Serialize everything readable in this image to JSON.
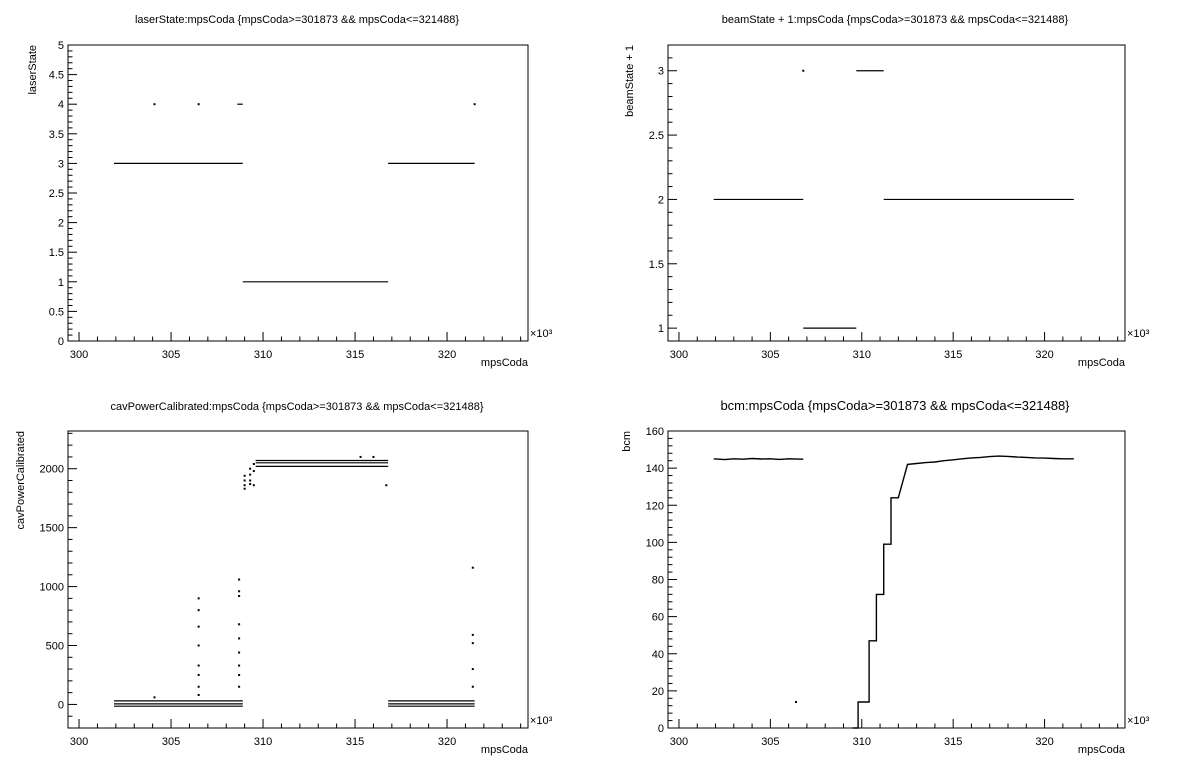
{
  "chart_data": [
    {
      "type": "scatter",
      "title": "laserState:mpsCoda {mpsCoda>=301873 && mpsCoda<=321488}",
      "xlabel": "mpsCoda",
      "ylabel": "laserState",
      "x_multiplier": "×10³",
      "xlim": [
        299.4,
        324.4
      ],
      "ylim": [
        0,
        5
      ],
      "xticks": [
        "300",
        "305",
        "310",
        "315",
        "320"
      ],
      "yticks": [
        "0",
        "0.5",
        "1",
        "1.5",
        "2",
        "2.5",
        "3",
        "3.5",
        "4",
        "4.5",
        "5"
      ],
      "segments": [
        {
          "x": [
            301.9,
            308.9
          ],
          "y": 3
        },
        {
          "x": [
            308.9,
            316.8
          ],
          "y": 1
        },
        {
          "x": [
            316.8,
            321.5
          ],
          "y": 3
        },
        {
          "x": [
            308.6,
            308.9
          ],
          "y": 4
        }
      ],
      "points": [
        {
          "x": 304.1,
          "y": 4
        },
        {
          "x": 306.5,
          "y": 4
        },
        {
          "x": 321.5,
          "y": 4
        }
      ]
    },
    {
      "type": "scatter",
      "title": "beamState + 1:mpsCoda {mpsCoda>=301873 && mpsCoda<=321488}",
      "xlabel": "mpsCoda",
      "ylabel": "beamState + 1",
      "x_multiplier": "×10³",
      "xlim": [
        299.4,
        324.4
      ],
      "ylim": [
        0.9,
        3.2
      ],
      "xticks": [
        "300",
        "305",
        "310",
        "315",
        "320"
      ],
      "yticks": [
        "1",
        "1.5",
        "2",
        "2.5",
        "3"
      ],
      "segments": [
        {
          "x": [
            301.9,
            306.8
          ],
          "y": 2
        },
        {
          "x": [
            306.8,
            309.7
          ],
          "y": 1
        },
        {
          "x": [
            309.7,
            311.2
          ],
          "y": 3
        },
        {
          "x": [
            311.2,
            321.6
          ],
          "y": 2
        }
      ],
      "points": [
        {
          "x": 306.8,
          "y": 3
        }
      ]
    },
    {
      "type": "scatter",
      "title": "cavPowerCalibrated:mpsCoda {mpsCoda>=301873 && mpsCoda<=321488}",
      "xlabel": "mpsCoda",
      "ylabel": "cavPowerCalibrated",
      "x_multiplier": "×10³",
      "xlim": [
        299.4,
        324.4
      ],
      "ylim": [
        -200,
        2320
      ],
      "xticks": [
        "300",
        "305",
        "310",
        "315",
        "320"
      ],
      "yticks": [
        "0",
        "500",
        "1000",
        "1500",
        "2000"
      ],
      "segments": [
        {
          "x": [
            301.9,
            308.9
          ],
          "y": 30
        },
        {
          "x": [
            301.9,
            308.9
          ],
          "y": 5
        },
        {
          "x": [
            301.9,
            308.9
          ],
          "y": -15
        },
        {
          "x": [
            309.6,
            316.8
          ],
          "y": 2070
        },
        {
          "x": [
            309.6,
            316.8
          ],
          "y": 2050
        },
        {
          "x": [
            309.6,
            316.8
          ],
          "y": 2020
        },
        {
          "x": [
            316.8,
            321.5
          ],
          "y": 30
        },
        {
          "x": [
            316.8,
            321.5
          ],
          "y": 5
        },
        {
          "x": [
            316.8,
            321.5
          ],
          "y": -15
        }
      ],
      "points": [
        {
          "x": 304.1,
          "y": 60
        },
        {
          "x": 306.5,
          "y": 900
        },
        {
          "x": 306.5,
          "y": 800
        },
        {
          "x": 306.5,
          "y": 660
        },
        {
          "x": 306.5,
          "y": 500
        },
        {
          "x": 306.5,
          "y": 330
        },
        {
          "x": 306.5,
          "y": 250
        },
        {
          "x": 306.5,
          "y": 150
        },
        {
          "x": 306.5,
          "y": 80
        },
        {
          "x": 308.7,
          "y": 1060
        },
        {
          "x": 308.7,
          "y": 960
        },
        {
          "x": 308.7,
          "y": 920
        },
        {
          "x": 308.7,
          "y": 680
        },
        {
          "x": 308.7,
          "y": 560
        },
        {
          "x": 308.7,
          "y": 440
        },
        {
          "x": 308.7,
          "y": 330
        },
        {
          "x": 308.7,
          "y": 250
        },
        {
          "x": 308.7,
          "y": 150
        },
        {
          "x": 309.0,
          "y": 1940
        },
        {
          "x": 309.0,
          "y": 1900
        },
        {
          "x": 309.0,
          "y": 1860
        },
        {
          "x": 309.0,
          "y": 1830
        },
        {
          "x": 309.3,
          "y": 2000
        },
        {
          "x": 309.3,
          "y": 1950
        },
        {
          "x": 309.3,
          "y": 1900
        },
        {
          "x": 309.3,
          "y": 1870
        },
        {
          "x": 309.5,
          "y": 2040
        },
        {
          "x": 309.5,
          "y": 1980
        },
        {
          "x": 309.5,
          "y": 1860
        },
        {
          "x": 315.3,
          "y": 2100
        },
        {
          "x": 316.0,
          "y": 2100
        },
        {
          "x": 316.7,
          "y": 1860
        },
        {
          "x": 321.4,
          "y": 1160
        },
        {
          "x": 321.4,
          "y": 590
        },
        {
          "x": 321.4,
          "y": 520
        },
        {
          "x": 321.4,
          "y": 300
        },
        {
          "x": 321.4,
          "y": 150
        }
      ]
    },
    {
      "type": "scatter",
      "title": "bcm:mpsCoda {mpsCoda>=301873 && mpsCoda<=321488}",
      "xlabel": "mpsCoda",
      "ylabel": "bcm",
      "x_multiplier": "×10³",
      "xlim": [
        299.4,
        324.4
      ],
      "ylim": [
        0,
        160
      ],
      "xticks": [
        "300",
        "305",
        "310",
        "315",
        "320"
      ],
      "yticks": [
        "0",
        "20",
        "40",
        "60",
        "80",
        "100",
        "120",
        "140",
        "160"
      ],
      "series": [
        {
          "x": [
            301.9,
            302.5,
            303.0,
            303.5,
            304.0,
            304.5,
            305.0,
            305.5,
            306.0,
            306.8
          ],
          "y": [
            145,
            144.6,
            145,
            144.8,
            145.2,
            144.9,
            145,
            144.7,
            145,
            144.8
          ]
        },
        {
          "x": [
            309.5,
            309.8,
            309.8,
            310.4,
            310.4,
            310.8,
            310.8,
            311.2,
            311.2,
            311.6,
            311.6,
            312.0,
            312.5,
            313.0,
            313.5,
            314.0,
            314.5,
            315.0,
            315.5,
            316.0,
            316.5,
            317.0,
            317.5,
            318.0,
            318.5,
            319.0,
            319.5,
            320.0,
            320.5,
            321.0,
            321.6
          ],
          "y": [
            0,
            0,
            14,
            14,
            47,
            47,
            72,
            72,
            99,
            99,
            124,
            124,
            142,
            142.5,
            143,
            143.3,
            144,
            144.5,
            145,
            145.5,
            145.8,
            146.2,
            146.5,
            146.3,
            146,
            145.8,
            145.5,
            145.4,
            145.2,
            145,
            145
          ]
        }
      ],
      "points": [
        {
          "x": 306.4,
          "y": 14
        }
      ]
    }
  ]
}
